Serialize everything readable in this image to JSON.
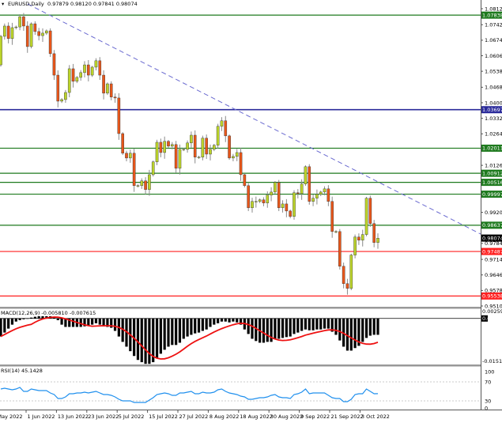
{
  "header": {
    "symbol_label": "EURUSD,Daily",
    "ohlc": "0.97879 0.98120 0.97841 0.98074"
  },
  "colors": {
    "up": "#bcd42a",
    "down": "#e8561a",
    "wick": "#8a8a8a",
    "support_green": "#1e7a1e",
    "level_blue": "#2a2a9a",
    "level_red": "#ff2020",
    "trendline": "#6a6ad0",
    "macd_hist": "#000000",
    "macd_signal": "#ee1111",
    "rsi": "#2090ee"
  },
  "chart_data": {
    "type": "candlestick",
    "symbol": "EURUSD",
    "timeframe": "Daily",
    "price_ylim": [
      0.951,
      1.0812
    ],
    "first_open": 1.0566,
    "closes": [
      1.0691,
      1.0736,
      1.0681,
      1.0729,
      1.0732,
      1.0777,
      1.0736,
      1.0646,
      1.0746,
      1.0712,
      1.0694,
      1.0705,
      1.0715,
      1.0615,
      1.0521,
      1.0407,
      1.0414,
      1.0445,
      1.0549,
      1.0494,
      1.0511,
      1.0532,
      1.0566,
      1.0521,
      1.0556,
      1.0584,
      1.0521,
      1.0442,
      1.0483,
      1.0425,
      1.0421,
      1.0265,
      1.0179,
      1.0158,
      1.0179,
      1.0037,
      1.0037,
      1.0058,
      1.002,
      1.0085,
      1.0141,
      1.0227,
      1.0182,
      1.0231,
      1.021,
      1.0217,
      1.0113,
      1.0196,
      1.0196,
      1.0224,
      1.0258,
      1.0162,
      1.0162,
      1.0245,
      1.0175,
      1.0196,
      1.0214,
      1.0297,
      1.0321,
      1.0255,
      1.0158,
      1.0165,
      1.0182,
      1.0085,
      1.0037,
      0.994,
      0.9968,
      0.9968,
      0.9975,
      0.9961,
      0.9996,
      1.0009,
      1.0051,
      0.994,
      0.9957,
      0.9926,
      0.9902,
      1.0006,
      1.0002,
      1.0044,
      1.012,
      0.9968,
      0.9982,
      0.9999,
      1.0009,
      1.0023,
      0.9968,
      0.9836,
      0.9836,
      0.9684,
      0.9608,
      0.9587,
      0.9733,
      0.9812,
      0.9798,
      0.9823,
      0.9982,
      0.9871,
      0.9788,
      0.9807
    ],
    "price_ticks": [
      "1.08120",
      "1.07420",
      "1.06740",
      "1.06060",
      "1.05380",
      "1.04680",
      "1.04000",
      "1.03320",
      "1.02640",
      "1.01260",
      "0.99200",
      "0.97840",
      "0.97140",
      "0.96460",
      "0.95780",
      "0.95100"
    ],
    "levels": [
      {
        "value": "1.07838",
        "color": "green"
      },
      {
        "value": "1.03697",
        "color": "blue"
      },
      {
        "value": "1.02011",
        "color": "green"
      },
      {
        "value": "1.00912",
        "color": "green"
      },
      {
        "value": "1.00516",
        "color": "green"
      },
      {
        "value": "0.99997",
        "color": "green"
      },
      {
        "value": "0.98637",
        "color": "green"
      },
      {
        "value": "0.97487",
        "color": "red"
      },
      {
        "value": "0.95538",
        "color": "red"
      }
    ],
    "current_price": "0.98074",
    "x_labels": [
      "May 2022",
      "1 Jun 2022",
      "13 Jun 2022",
      "23 Jun 2022",
      "5 Jul 2022",
      "15 Jul 2022",
      "27 Jul 2022",
      "8 Aug 2022",
      "18 Aug 2022",
      "30 Aug 2022",
      "9 Sep 2022",
      "21 Sep 2022",
      "3 Oct 2022"
    ],
    "macd": {
      "label": "MACD(12,26,9) -0.005810 -0.007615",
      "ylim": [
        -0.0166,
        0.0033
      ],
      "ticks": [
        "0.002598",
        "0.00",
        "-0.01514"
      ],
      "histogram": [
        -0.0064,
        -0.005,
        -0.0036,
        -0.0022,
        -0.0011,
        -0.0006,
        -0.0003,
        0.0,
        0.0003,
        0.0006,
        0.0008,
        0.0008,
        0.0008,
        0.0008,
        0.0006,
        -0.0006,
        -0.0022,
        -0.003,
        -0.003,
        -0.003,
        -0.003,
        -0.003,
        -0.0028,
        -0.0025,
        -0.0022,
        -0.0017,
        -0.0022,
        -0.0028,
        -0.003,
        -0.0033,
        -0.0044,
        -0.0064,
        -0.0083,
        -0.01,
        -0.0116,
        -0.0133,
        -0.0147,
        -0.0155,
        -0.0161,
        -0.0161,
        -0.0155,
        -0.0139,
        -0.0125,
        -0.0111,
        -0.01,
        -0.0094,
        -0.0094,
        -0.0086,
        -0.0072,
        -0.0064,
        -0.0058,
        -0.0053,
        -0.005,
        -0.0044,
        -0.0039,
        -0.003,
        -0.0022,
        -0.0017,
        -0.0011,
        -0.0011,
        -0.0014,
        -0.0011,
        -0.0014,
        -0.0022,
        -0.0039,
        -0.0055,
        -0.0072,
        -0.008,
        -0.0086,
        -0.0086,
        -0.0083,
        -0.0083,
        -0.0072,
        -0.0072,
        -0.0069,
        -0.0066,
        -0.0064,
        -0.0055,
        -0.005,
        -0.0044,
        -0.0039,
        -0.0042,
        -0.0042,
        -0.0039,
        -0.0039,
        -0.0036,
        -0.0036,
        -0.0047,
        -0.0058,
        -0.0078,
        -0.01,
        -0.0114,
        -0.0114,
        -0.0105,
        -0.0097,
        -0.0083,
        -0.0069,
        -0.0061,
        -0.0058,
        -0.0058
      ]
    },
    "rsi": {
      "label": "RSI(14) 45.1428",
      "ylim": [
        0,
        100
      ],
      "levels": [
        70,
        30
      ],
      "ticks": [
        "100",
        "70",
        "30",
        "0"
      ],
      "values": [
        55.0,
        56.7,
        55.0,
        53.3,
        55.0,
        58.3,
        50.0,
        50.0,
        55.0,
        53.3,
        51.7,
        51.7,
        51.7,
        46.7,
        43.3,
        35.0,
        35.0,
        38.3,
        45.0,
        45.0,
        46.7,
        46.7,
        48.3,
        46.7,
        48.3,
        50.0,
        46.7,
        43.3,
        43.3,
        41.7,
        38.3,
        33.3,
        30.0,
        30.0,
        30.0,
        26.7,
        26.7,
        26.7,
        26.7,
        31.7,
        36.7,
        43.3,
        45.0,
        46.7,
        45.0,
        41.7,
        41.7,
        46.7,
        46.7,
        48.3,
        50.0,
        45.0,
        45.0,
        48.3,
        46.7,
        46.7,
        48.3,
        53.3,
        55.0,
        50.0,
        46.7,
        45.0,
        43.3,
        40.0,
        38.3,
        33.3,
        33.3,
        35.0,
        36.7,
        36.7,
        38.3,
        41.7,
        43.3,
        38.3,
        36.7,
        36.7,
        35.0,
        43.3,
        45.0,
        48.3,
        55.0,
        45.0,
        46.7,
        46.7,
        46.7,
        46.7,
        41.7,
        36.7,
        35.0,
        35.0,
        28.3,
        28.3,
        33.3,
        43.3,
        45.0,
        45.0,
        55.0,
        50.0,
        45.0,
        45.1
      ]
    }
  }
}
